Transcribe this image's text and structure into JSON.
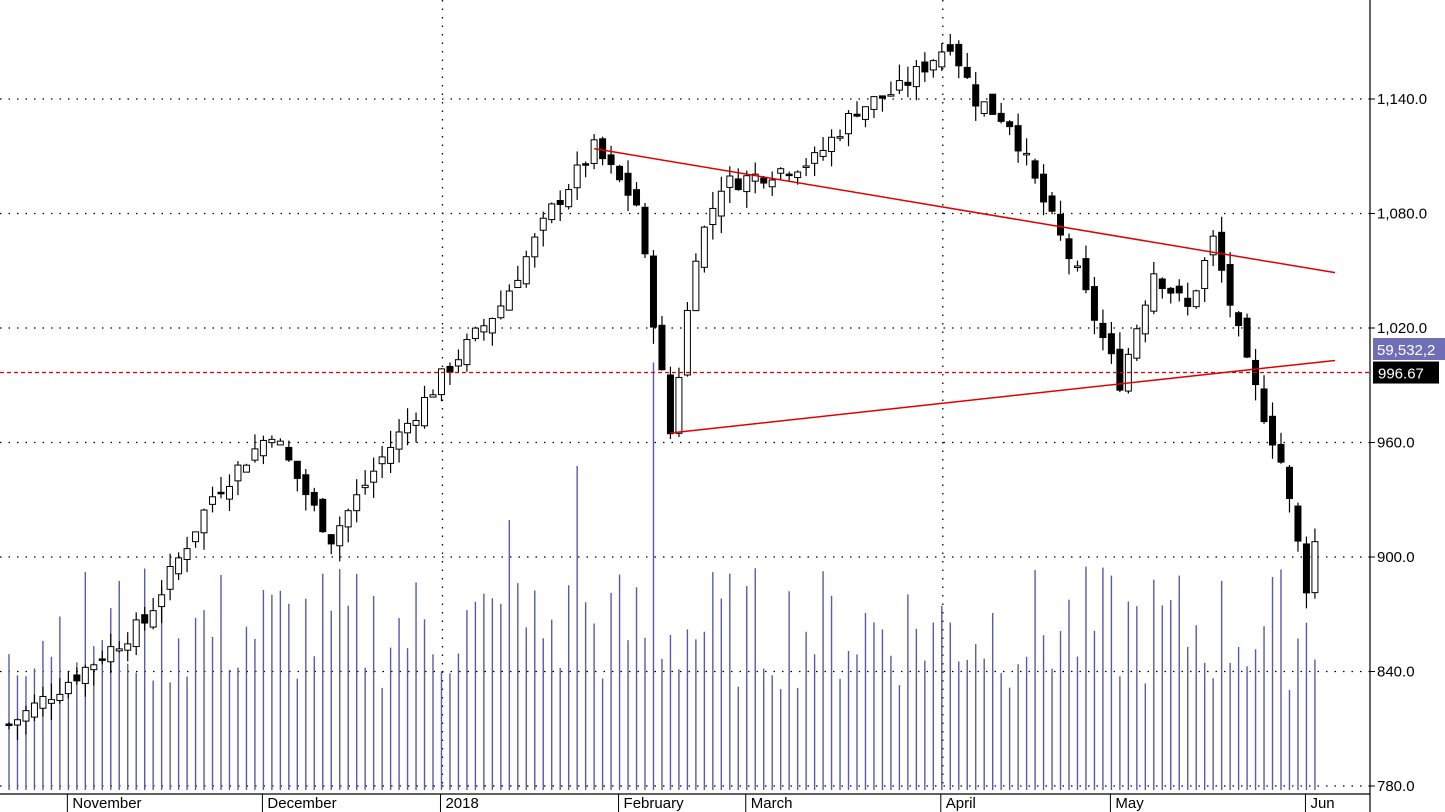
{
  "chart_data": {
    "type": "candlestick",
    "y_axis": {
      "ticks": [
        780,
        840,
        900,
        960,
        1020,
        1080,
        1140
      ],
      "tick_labels": [
        "780.0",
        "840.0",
        "900.0",
        "960.0",
        "1,020.0",
        "1,080.0",
        "1,140.0"
      ],
      "range": [
        774,
        1185
      ],
      "side": "right"
    },
    "x_axis": {
      "months": [
        "November",
        "December",
        "2018",
        "February",
        "March",
        "April",
        "May",
        "Jun"
      ]
    },
    "grid": true,
    "last_price": {
      "label": "996.67",
      "value": 996.67
    },
    "volume_tag": {
      "label": "59,532,2"
    },
    "candles_note": "daily OHLC, ~154 sessions late Oct 2017 to early Jun 2018",
    "key_levels": {
      "start": 812,
      "dec_high": 966,
      "jan_high": 1114,
      "feb_low": 965,
      "apr_high": 1170,
      "may_low": 992,
      "jun_low": 885,
      "last": 996.67
    },
    "trendlines": [
      {
        "name": "resistance",
        "from": {
          "date": "2018-01-29",
          "value": 1114
        },
        "to": {
          "date": "chart-edge",
          "value": 1049
        }
      },
      {
        "name": "support",
        "from": {
          "date": "2018-02-09",
          "value": 965
        },
        "to": {
          "date": "chart-edge",
          "value": 1003
        }
      }
    ],
    "horizontal_line": {
      "value": 996.67,
      "style": "dashed"
    },
    "volume_relative_peaks": [
      0.72,
      0.6,
      0.95,
      0.58,
      0.47,
      0.5
    ],
    "colors": {
      "up_candle": "#ffffff",
      "down_candle": "#000000",
      "wick": "#000000",
      "volume": "#5a5aa8",
      "trendline": "#e00000",
      "price_line": "#e00000",
      "grid": "#000000",
      "last_tag_bg": "#000000",
      "last_tag_text": "#ffffff",
      "volume_tag_bg": "#6f6fb8",
      "volume_tag_text": "#ffffff"
    }
  }
}
